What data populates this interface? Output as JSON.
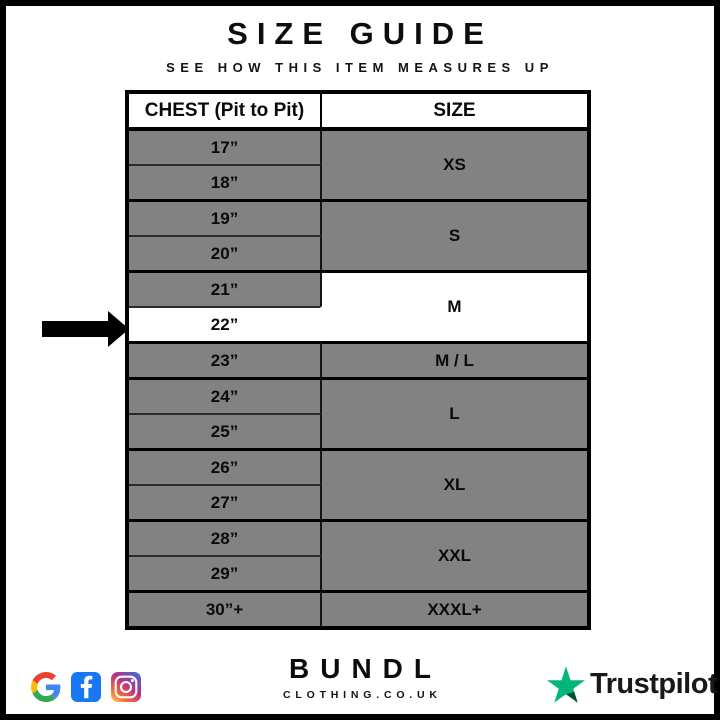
{
  "page": {
    "title": "SIZE GUIDE",
    "subtitle": "SEE HOW THIS ITEM MEASURES UP"
  },
  "table": {
    "columns": [
      "CHEST (Pit to Pit)",
      "SIZE"
    ],
    "rows": [
      {
        "chest": "17”",
        "size": "XS",
        "rowspan": 2,
        "group_start": true
      },
      {
        "chest": "18”"
      },
      {
        "chest": "19”",
        "size": "S",
        "rowspan": 2,
        "group_start": true
      },
      {
        "chest": "20”"
      },
      {
        "chest": "21”",
        "size": "M",
        "rowspan": 2,
        "group_start": true,
        "size_highlight": true
      },
      {
        "chest": "22”",
        "chest_highlight": true
      },
      {
        "chest": "23”",
        "size": "M / L",
        "rowspan": 1,
        "group_start": true
      },
      {
        "chest": "24”",
        "size": "L",
        "rowspan": 2,
        "group_start": true
      },
      {
        "chest": "25”"
      },
      {
        "chest": "26”",
        "size": "XL",
        "rowspan": 2,
        "group_start": true
      },
      {
        "chest": "27”"
      },
      {
        "chest": "28”",
        "size": "XXL",
        "rowspan": 2,
        "group_start": true
      },
      {
        "chest": "29”"
      },
      {
        "chest": "30”+",
        "size": "XXXL+",
        "rowspan": 1,
        "group_start": true
      }
    ],
    "highlight": {
      "chest": "22”",
      "size": "M"
    }
  },
  "chart_data": {
    "type": "table",
    "title": "SIZE GUIDE",
    "subtitle": "SEE HOW THIS ITEM MEASURES UP",
    "columns": [
      "CHEST (Pit to Pit)",
      "SIZE"
    ],
    "rows": [
      [
        "17”",
        "XS"
      ],
      [
        "18”",
        "XS"
      ],
      [
        "19”",
        "S"
      ],
      [
        "20”",
        "S"
      ],
      [
        "21”",
        "M"
      ],
      [
        "22”",
        "M"
      ],
      [
        "23”",
        "M / L"
      ],
      [
        "24”",
        "L"
      ],
      [
        "25”",
        "L"
      ],
      [
        "26”",
        "XL"
      ],
      [
        "27”",
        "XL"
      ],
      [
        "28”",
        "XXL"
      ],
      [
        "29”",
        "XXL"
      ],
      [
        "30”+",
        "XXXL+"
      ]
    ],
    "highlighted_row": {
      "chest": "22”",
      "size": "M"
    },
    "arrow_points_to": "22”"
  },
  "footer": {
    "brand": "BUNDL",
    "brand_sub": "CLOTHING.CO.UK",
    "trustpilot_label": "Trustpilot",
    "icons": [
      "google-icon",
      "facebook-icon",
      "instagram-icon",
      "trustpilot-star-icon",
      "arrow-right-icon"
    ]
  },
  "colors": {
    "cell_gray": "#828282",
    "highlight_white": "#ffffff",
    "border_black": "#000000",
    "facebook_blue": "#1877F2",
    "google_blue": "#4285F4",
    "google_red": "#EA4335",
    "google_yellow": "#FBBC05",
    "google_green": "#34A853",
    "trustpilot_green": "#00B67A",
    "trustpilot_dark_green": "#005128"
  }
}
